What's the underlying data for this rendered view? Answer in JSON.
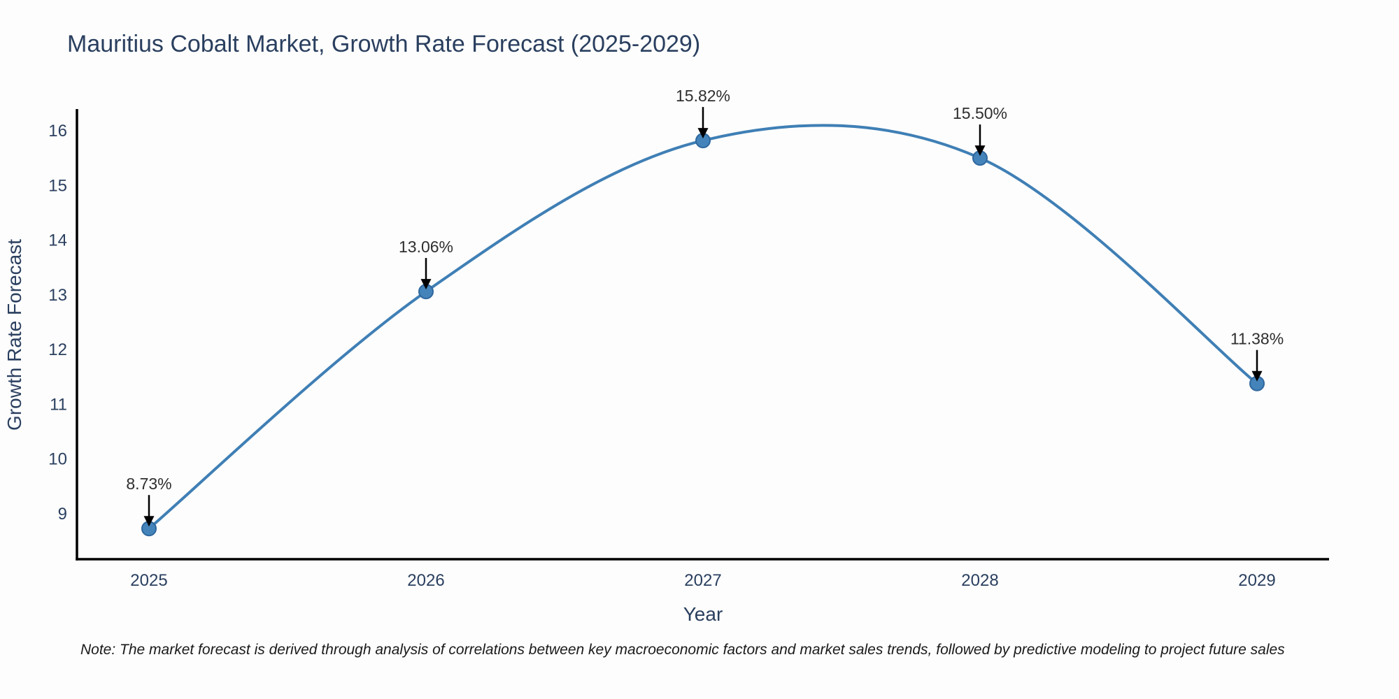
{
  "chart_data": {
    "type": "line",
    "title": "Mauritius Cobalt Market, Growth Rate Forecast (2025-2029)",
    "x": [
      2025,
      2026,
      2027,
      2028,
      2029
    ],
    "y": [
      8.73,
      13.06,
      15.82,
      15.5,
      11.38
    ],
    "point_labels": [
      "8.73%",
      "13.06%",
      "15.82%",
      "15.50%",
      "11.38%"
    ],
    "series_name": "Growth Rate Forecast",
    "xlabel": "Year",
    "ylabel": "Growth Rate Forecast",
    "xticks": [
      "2025",
      "2026",
      "2027",
      "2028",
      "2029"
    ],
    "yticks": [
      9,
      10,
      11,
      12,
      13,
      14,
      15,
      16
    ],
    "xlim": [
      2024.74,
      2029.26
    ],
    "ylim": [
      8.17,
      16.37
    ],
    "line_shape": "spline",
    "grid": false,
    "legend_position": "none",
    "colors": {
      "line": "#3f7fb5",
      "marker_fill": "#4484ba",
      "marker_edge": "#30689e",
      "axis_line": "#000000",
      "text": "#2a3f5f",
      "annotation_text": "#2e2e2e",
      "arrow": "#000000",
      "background": "#fdfdfd"
    }
  },
  "note": {
    "text": "Note: The market forecast is derived through analysis of correlations between key macroeconomic factors and market sales trends, followed by predictive modeling to project future sales"
  }
}
